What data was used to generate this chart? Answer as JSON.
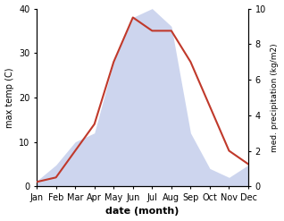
{
  "months": [
    "Jan",
    "Feb",
    "Mar",
    "Apr",
    "May",
    "Jun",
    "Jul",
    "Aug",
    "Sep",
    "Oct",
    "Nov",
    "Dec"
  ],
  "temperature": [
    1,
    2,
    8,
    14,
    28,
    38,
    35,
    35,
    28,
    18,
    8,
    5
  ],
  "precipitation": [
    0.3,
    1.2,
    2.5,
    3.0,
    7.0,
    9.5,
    10.0,
    9.0,
    3.0,
    1.0,
    0.5,
    1.2
  ],
  "temp_ylim": [
    0,
    40
  ],
  "precip_ylim": [
    0,
    10
  ],
  "temp_color": "#c0392b",
  "precip_fill_color": "#b8c4e8",
  "xlabel": "date (month)",
  "ylabel_left": "max temp (C)",
  "ylabel_right": "med. precipitation (kg/m2)",
  "bg_color": "#ffffff"
}
